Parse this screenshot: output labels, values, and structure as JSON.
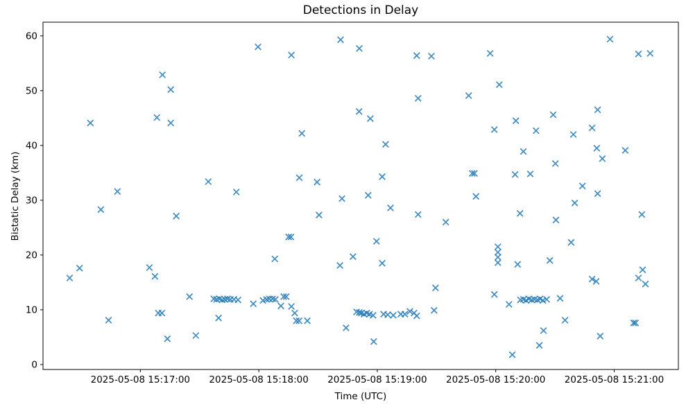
{
  "chart_data": {
    "type": "scatter",
    "title": "Detections in Delay",
    "xlabel": "Time (UTC)",
    "ylabel": "Bistatic Delay (km)",
    "marker": "x",
    "marker_color": "#1f77b4",
    "background_color": "#ffffff",
    "grid": false,
    "legend": null,
    "x_unit": "seconds after 2025-05-08 15:17:00 UTC",
    "x_ticks": [
      {
        "t": 0,
        "label": "2025-05-08 15:17:00"
      },
      {
        "t": 60,
        "label": "2025-05-08 15:18:00"
      },
      {
        "t": 120,
        "label": "2025-05-08 15:19:00"
      },
      {
        "t": 180,
        "label": "2025-05-08 15:20:00"
      },
      {
        "t": 240,
        "label": "2025-05-08 15:21:00"
      }
    ],
    "y_ticks": [
      0,
      10,
      20,
      30,
      40,
      50,
      60
    ],
    "x_view_range_s": [
      -49.3,
      272.5
    ],
    "y_view_range": [
      -0.9,
      62.5
    ],
    "points": [
      [
        -35.8,
        15.8
      ],
      [
        -30.8,
        17.6
      ],
      [
        -25.3,
        44.1
      ],
      [
        -20.0,
        28.3
      ],
      [
        -16.1,
        8.1
      ],
      [
        -11.6,
        31.6
      ],
      [
        4.6,
        17.7
      ],
      [
        7.4,
        16.1
      ],
      [
        8.4,
        45.1
      ],
      [
        9.1,
        9.4
      ],
      [
        10.9,
        9.4
      ],
      [
        11.2,
        52.9
      ],
      [
        13.7,
        4.7
      ],
      [
        15.4,
        50.2
      ],
      [
        15.4,
        44.1
      ],
      [
        18.2,
        27.1
      ],
      [
        24.9,
        12.4
      ],
      [
        28.1,
        5.3
      ],
      [
        34.4,
        33.4
      ],
      [
        37.2,
        12.0
      ],
      [
        38.6,
        11.9
      ],
      [
        39.6,
        8.5
      ],
      [
        40.0,
        12.0
      ],
      [
        41.4,
        11.8
      ],
      [
        42.8,
        11.9
      ],
      [
        44.2,
        12.0
      ],
      [
        45.6,
        11.9
      ],
      [
        47.4,
        11.9
      ],
      [
        48.6,
        31.5
      ],
      [
        49.5,
        11.8
      ],
      [
        57.2,
        11.1
      ],
      [
        59.6,
        58.0
      ],
      [
        62.1,
        11.7
      ],
      [
        63.9,
        11.9
      ],
      [
        65.3,
        12.0
      ],
      [
        67.0,
        12.0
      ],
      [
        68.1,
        19.3
      ],
      [
        68.4,
        11.9
      ],
      [
        71.2,
        10.7
      ],
      [
        72.6,
        12.4
      ],
      [
        73.9,
        12.4
      ],
      [
        75.1,
        23.3
      ],
      [
        76.3,
        23.3
      ],
      [
        76.5,
        56.5
      ],
      [
        76.5,
        10.6
      ],
      [
        78.2,
        9.4
      ],
      [
        79.0,
        8.0
      ],
      [
        80.4,
        8.0
      ],
      [
        80.5,
        34.1
      ],
      [
        81.8,
        42.2
      ],
      [
        84.6,
        8.0
      ],
      [
        89.5,
        33.3
      ],
      [
        90.5,
        27.3
      ],
      [
        101.1,
        18.1
      ],
      [
        101.4,
        59.3
      ],
      [
        102.1,
        30.3
      ],
      [
        104.2,
        6.7
      ],
      [
        107.7,
        19.7
      ],
      [
        109.5,
        9.6
      ],
      [
        110.8,
        46.2
      ],
      [
        110.9,
        57.7
      ],
      [
        110.9,
        9.5
      ],
      [
        111.9,
        9.4
      ],
      [
        113.3,
        9.2
      ],
      [
        114.7,
        9.4
      ],
      [
        115.4,
        30.9
      ],
      [
        116.1,
        9.2
      ],
      [
        116.5,
        44.9
      ],
      [
        117.9,
        9.0
      ],
      [
        118.2,
        4.2
      ],
      [
        119.6,
        22.5
      ],
      [
        122.5,
        34.3
      ],
      [
        122.5,
        18.5
      ],
      [
        123.2,
        9.2
      ],
      [
        124.2,
        40.2
      ],
      [
        125.3,
        9.1
      ],
      [
        126.7,
        28.6
      ],
      [
        128.1,
        9.0
      ],
      [
        131.9,
        9.2
      ],
      [
        134.0,
        9.2
      ],
      [
        136.5,
        9.7
      ],
      [
        138.6,
        9.4
      ],
      [
        140.0,
        8.9
      ],
      [
        140.0,
        56.4
      ],
      [
        140.7,
        48.6
      ],
      [
        140.7,
        27.4
      ],
      [
        147.4,
        56.3
      ],
      [
        148.8,
        9.9
      ],
      [
        149.5,
        14.0
      ],
      [
        154.7,
        26.0
      ],
      [
        166.3,
        49.1
      ],
      [
        168.1,
        34.9
      ],
      [
        169.2,
        34.9
      ],
      [
        170.0,
        30.7
      ],
      [
        177.2,
        56.8
      ],
      [
        179.3,
        42.9
      ],
      [
        179.3,
        12.8
      ],
      [
        181.1,
        21.5
      ],
      [
        181.1,
        20.5
      ],
      [
        181.1,
        19.6
      ],
      [
        181.1,
        18.6
      ],
      [
        181.8,
        51.1
      ],
      [
        186.7,
        11.0
      ],
      [
        188.4,
        1.8
      ],
      [
        189.8,
        34.7
      ],
      [
        190.2,
        44.5
      ],
      [
        191.1,
        18.3
      ],
      [
        192.3,
        27.6
      ],
      [
        192.5,
        11.8
      ],
      [
        194.0,
        38.9
      ],
      [
        194.0,
        11.9
      ],
      [
        195.4,
        11.7
      ],
      [
        196.8,
        12.0
      ],
      [
        197.5,
        34.8
      ],
      [
        198.2,
        11.8
      ],
      [
        199.6,
        11.9
      ],
      [
        200.4,
        42.7
      ],
      [
        201.1,
        11.8
      ],
      [
        202.1,
        3.5
      ],
      [
        202.5,
        12.0
      ],
      [
        203.9,
        11.7
      ],
      [
        204.2,
        6.2
      ],
      [
        205.8,
        11.9
      ],
      [
        207.4,
        19.0
      ],
      [
        209.1,
        45.6
      ],
      [
        210.2,
        36.7
      ],
      [
        210.5,
        26.4
      ],
      [
        212.6,
        12.1
      ],
      [
        215.1,
        8.1
      ],
      [
        218.2,
        22.3
      ],
      [
        219.3,
        42.0
      ],
      [
        220.0,
        29.5
      ],
      [
        223.9,
        32.6
      ],
      [
        228.8,
        43.2
      ],
      [
        228.8,
        15.6
      ],
      [
        230.9,
        15.2
      ],
      [
        231.2,
        39.5
      ],
      [
        231.6,
        46.5
      ],
      [
        231.6,
        31.2
      ],
      [
        232.9,
        5.2
      ],
      [
        234.0,
        37.6
      ],
      [
        237.9,
        59.4
      ],
      [
        245.6,
        39.1
      ],
      [
        249.8,
        7.6
      ],
      [
        250.8,
        7.6
      ],
      [
        252.3,
        56.7
      ],
      [
        252.3,
        15.8
      ],
      [
        254.0,
        27.4
      ],
      [
        254.4,
        17.3
      ],
      [
        255.8,
        14.7
      ],
      [
        258.2,
        56.8
      ]
    ]
  }
}
